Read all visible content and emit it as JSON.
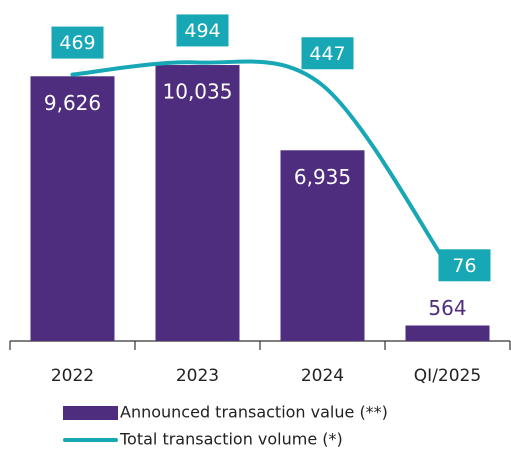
{
  "chart_data": {
    "type": "bar",
    "categories": [
      "2022",
      "2023",
      "2024",
      "QI/2025"
    ],
    "ylim": [
      0,
      12000
    ],
    "y2lim": [
      -80,
      600
    ],
    "series": [
      {
        "name": "Announced transaction value (**)",
        "type": "bar",
        "color": "#4e2c7e",
        "values": [
          9626,
          10035,
          6935,
          564
        ],
        "value_labels": [
          "9,626",
          "10,035",
          "6,935",
          "564"
        ]
      },
      {
        "name": "Total transaction volume (*)",
        "type": "line",
        "axis": "y2",
        "color": "#17a7b5",
        "values": [
          469,
          494,
          447,
          76
        ]
      }
    ],
    "legend": "bottom"
  }
}
